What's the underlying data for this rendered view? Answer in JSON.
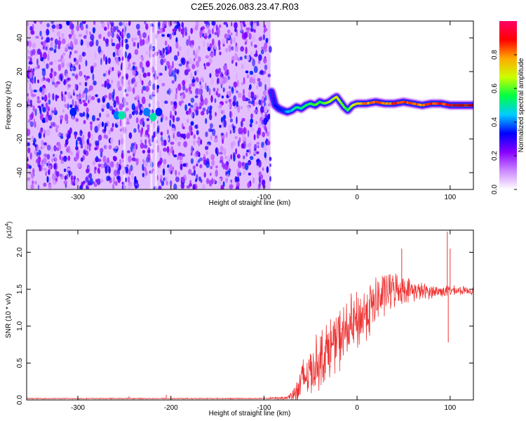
{
  "title": "C2E5.2026.083.23.47.R03",
  "chart_data": [
    {
      "type": "heatmap",
      "title": "C2E5.2026.083.23.47.R03",
      "xlabel": "Height of straight line (km)",
      "ylabel": "Frequency (Hz)",
      "xlim": [
        -355,
        125
      ],
      "ylim": [
        -50,
        50
      ],
      "xticks": [
        -300,
        -200,
        -100,
        0,
        100
      ],
      "xtick_labels": [
        "-300",
        "-200",
        "-100",
        "0",
        "100"
      ],
      "yticks": [
        -40,
        -20,
        0,
        20,
        40
      ],
      "ytick_labels": [
        "-40",
        "-20",
        "0",
        "20",
        "40"
      ],
      "colorbar": {
        "label": "Normalized spectral amplitude",
        "range": [
          0,
          1
        ],
        "ticks": [
          0.0,
          0.2,
          0.4,
          0.6,
          0.8
        ],
        "tick_labels": [
          "0.0",
          "0.2",
          "0.4",
          "0.6",
          "0.8"
        ],
        "colors": [
          "#ffffff",
          "#cc88ff",
          "#8800ff",
          "#0000ff",
          "#00ccff",
          "#00ff44",
          "#ccff00",
          "#ffaa00",
          "#ff0000",
          "#ff0066"
        ]
      },
      "noise_region": {
        "x_range": [
          -355,
          -93
        ],
        "freq_range": [
          -50,
          50
        ],
        "level": 0.18
      },
      "signal_ridge": {
        "x": [
          -92,
          -88,
          -84,
          -80,
          -75,
          -70,
          -65,
          -60,
          -55,
          -50,
          -45,
          -40,
          -35,
          -30,
          -25,
          -22,
          -18,
          -14,
          -10,
          -5,
          0,
          10,
          20,
          30,
          40,
          50,
          60,
          70,
          80,
          90,
          100,
          110,
          125
        ],
        "freq": [
          8,
          0,
          -2,
          -3,
          -4,
          -3,
          -1,
          -2,
          0,
          1,
          0,
          2,
          1,
          2,
          4,
          5,
          2,
          -1,
          -3,
          0,
          1,
          1,
          2,
          1,
          1,
          2,
          1,
          0,
          1,
          1,
          0,
          0,
          0
        ],
        "amplitude": [
          0.3,
          0.35,
          0.35,
          0.4,
          0.45,
          0.5,
          0.55,
          0.55,
          0.6,
          0.6,
          0.62,
          0.65,
          0.65,
          0.7,
          0.75,
          0.8,
          0.7,
          0.65,
          0.6,
          0.7,
          0.8,
          0.85,
          0.88,
          0.9,
          0.92,
          0.92,
          0.9,
          0.88,
          0.9,
          0.92,
          0.95,
          0.98,
          1.0
        ]
      },
      "noise_blobs": [
        {
          "x": -305,
          "freq": -4,
          "amplitude": 0.35
        },
        {
          "x": -258,
          "freq": -6,
          "amplitude": 0.4
        },
        {
          "x": -253,
          "freq": -6,
          "amplitude": 0.5
        },
        {
          "x": -226,
          "freq": -4,
          "amplitude": 0.4
        },
        {
          "x": -219,
          "freq": -7,
          "amplitude": 0.5
        },
        {
          "x": -213,
          "freq": -4,
          "amplitude": 0.35
        }
      ]
    },
    {
      "type": "line",
      "xlabel": "Height of straight line (km)",
      "ylabel": "SNR (10 * v/v)",
      "yscale_label": "(x10",
      "yscale_exponent": "4",
      "xlim": [
        -355,
        125
      ],
      "ylim": [
        0,
        2.3
      ],
      "xticks": [
        -300,
        -200,
        -100,
        0,
        100
      ],
      "xtick_labels": [
        "-300",
        "-200",
        "-100",
        "0",
        "100"
      ],
      "yticks": [
        0.0,
        0.5,
        1.0,
        1.5,
        2.0
      ],
      "ytick_labels": [
        "0.0",
        "0.5",
        "1.0",
        "1.5",
        "2.0"
      ],
      "color": "#ee3333",
      "series": [
        {
          "name": "SNR",
          "envelope_x": [
            -355,
            -300,
            -245,
            -200,
            -150,
            -100,
            -75,
            -65,
            -60,
            -50,
            -40,
            -30,
            -20,
            -10,
            0,
            10,
            20,
            30,
            40,
            50,
            60,
            70,
            80,
            90,
            100,
            110,
            125
          ],
          "envelope_mean": [
            0.02,
            0.02,
            0.02,
            0.02,
            0.02,
            0.02,
            0.03,
            0.1,
            0.25,
            0.4,
            0.55,
            0.7,
            0.82,
            0.95,
            1.05,
            1.2,
            1.32,
            1.45,
            1.5,
            1.5,
            1.48,
            1.47,
            1.47,
            1.47,
            1.48,
            1.48,
            1.48
          ],
          "envelope_spread": [
            0.005,
            0.005,
            0.005,
            0.005,
            0.005,
            0.005,
            0.02,
            0.15,
            0.25,
            0.3,
            0.33,
            0.35,
            0.35,
            0.35,
            0.35,
            0.33,
            0.3,
            0.26,
            0.2,
            0.16,
            0.12,
            0.1,
            0.08,
            0.07,
            0.06,
            0.05,
            0.04
          ],
          "spikes": [
            {
              "x": -245,
              "y": 0.05
            },
            {
              "x": -205,
              "y": 0.07
            },
            {
              "x": 48,
              "y": 2.05
            },
            {
              "x": 97,
              "y": 2.28
            },
            {
              "x": 98,
              "y": 0.78
            },
            {
              "x": 100,
              "y": 2.05
            }
          ]
        }
      ]
    }
  ]
}
